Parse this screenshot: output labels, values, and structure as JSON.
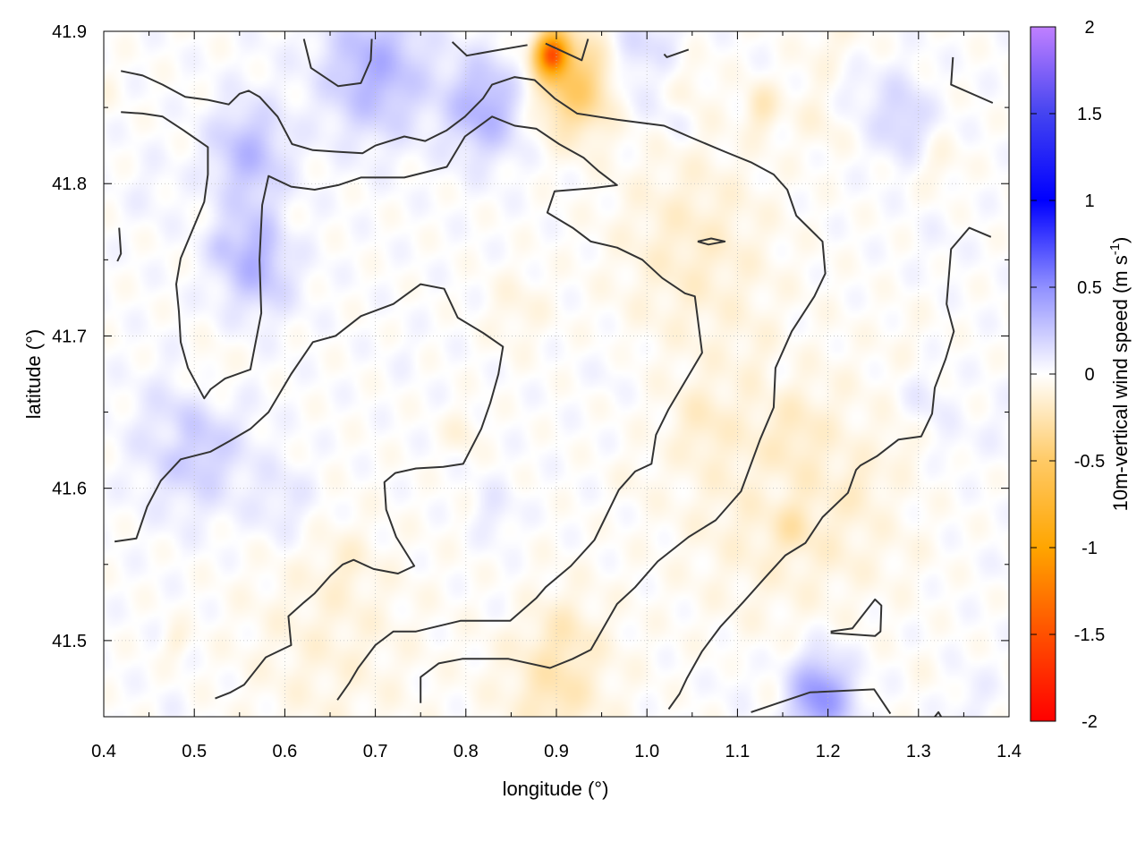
{
  "chart_data": {
    "type": "heatmap",
    "title": "",
    "xlabel": "longitude (°)",
    "ylabel": "latitude (°)",
    "xlim": [
      0.4,
      1.4
    ],
    "ylim": [
      41.45,
      41.9
    ],
    "xticks": [
      "0.4",
      "0.5",
      "0.6",
      "0.7",
      "0.8",
      "0.9",
      "1.0",
      "1.1",
      "1.2",
      "1.3",
      "1.4"
    ],
    "yticks": [
      "41.5",
      "41.6",
      "41.7",
      "41.8",
      "41.9"
    ],
    "grid": true,
    "colorbar": {
      "label_main": "10m-vertical wind speed (m s",
      "label_sup": "-1",
      "label_end": ")",
      "range": [
        -2,
        2
      ],
      "ticks": [
        "2",
        "1.5",
        "1",
        "0.5",
        "0",
        "-0.5",
        "-1",
        "-1.5",
        "-2"
      ],
      "stops": [
        {
          "v": -2,
          "color": "#ff0000"
        },
        {
          "v": -1.5,
          "color": "#ff5000"
        },
        {
          "v": -1,
          "color": "#ffa500"
        },
        {
          "v": -0.5,
          "color": "#ffca66"
        },
        {
          "v": 0,
          "color": "#ffffff"
        },
        {
          "v": 0.5,
          "color": "#9090ff"
        },
        {
          "v": 1,
          "color": "#0000ff"
        },
        {
          "v": 1.5,
          "color": "#4444f0"
        },
        {
          "v": 2,
          "color": "#c080ff"
        }
      ]
    },
    "field_features": [
      {
        "lon": 0.895,
        "lat": 41.885,
        "value": -1.3,
        "spread": 0.012
      },
      {
        "lon": 0.92,
        "lat": 41.865,
        "value": -0.5,
        "spread": 0.03
      },
      {
        "lon": 0.57,
        "lat": 41.75,
        "value": 0.35,
        "spread": 0.03
      },
      {
        "lon": 0.56,
        "lat": 41.82,
        "value": 0.3,
        "spread": 0.03
      },
      {
        "lon": 0.7,
        "lat": 41.875,
        "value": 0.35,
        "spread": 0.04
      },
      {
        "lon": 0.82,
        "lat": 41.85,
        "value": 0.35,
        "spread": 0.03
      },
      {
        "lon": 0.5,
        "lat": 41.63,
        "value": 0.25,
        "spread": 0.04
      },
      {
        "lon": 1.19,
        "lat": 41.463,
        "value": 0.5,
        "spread": 0.025
      },
      {
        "lon": 1.15,
        "lat": 41.6,
        "value": -0.15,
        "spread": 0.08
      },
      {
        "lon": 1.05,
        "lat": 41.76,
        "value": -0.15,
        "spread": 0.06
      },
      {
        "lon": 0.65,
        "lat": 41.5,
        "value": -0.1,
        "spread": 0.07
      },
      {
        "lon": 0.9,
        "lat": 41.48,
        "value": -0.15,
        "spread": 0.05
      },
      {
        "lon": 1.0,
        "lat": 41.88,
        "value": 0.2,
        "spread": 0.03
      }
    ],
    "contours": [
      [
        [
          0.419,
          41.874
        ],
        [
          0.443,
          41.871
        ],
        [
          0.465,
          41.865
        ],
        [
          0.49,
          41.857
        ],
        [
          0.515,
          41.855
        ],
        [
          0.538,
          41.852
        ],
        [
          0.55,
          41.859
        ],
        [
          0.56,
          41.861
        ],
        [
          0.572,
          41.857
        ],
        [
          0.592,
          41.844
        ],
        [
          0.608,
          41.826
        ],
        [
          0.631,
          41.822
        ],
        [
          0.656,
          41.821
        ],
        [
          0.686,
          41.82
        ],
        [
          0.7,
          41.825
        ],
        [
          0.732,
          41.831
        ],
        [
          0.755,
          41.828
        ],
        [
          0.779,
          41.835
        ],
        [
          0.799,
          41.844
        ],
        [
          0.819,
          41.856
        ],
        [
          0.829,
          41.865
        ],
        [
          0.854,
          41.87
        ],
        [
          0.876,
          41.868
        ],
        [
          0.898,
          41.856
        ],
        [
          0.923,
          41.846
        ],
        [
          0.967,
          41.842
        ],
        [
          1.019,
          41.838
        ],
        [
          1.046,
          41.831
        ],
        [
          1.086,
          41.821
        ],
        [
          1.115,
          41.814
        ],
        [
          1.14,
          41.806
        ],
        [
          1.155,
          41.796
        ],
        [
          1.165,
          41.779
        ],
        [
          1.194,
          41.762
        ],
        [
          1.197,
          41.741
        ],
        [
          1.185,
          41.726
        ],
        [
          1.16,
          41.703
        ],
        [
          1.142,
          41.679
        ],
        [
          1.14,
          41.653
        ],
        [
          1.125,
          41.632
        ],
        [
          1.104,
          41.598
        ],
        [
          1.076,
          41.579
        ],
        [
          1.046,
          41.568
        ],
        [
          1.012,
          41.552
        ],
        [
          0.987,
          41.535
        ],
        [
          0.967,
          41.524
        ],
        [
          0.938,
          41.494
        ],
        [
          0.918,
          41.488
        ],
        [
          0.893,
          41.482
        ],
        [
          0.847,
          41.488
        ],
        [
          0.796,
          41.488
        ],
        [
          0.77,
          41.485
        ],
        [
          0.75,
          41.476
        ],
        [
          0.75,
          41.459
        ]
      ],
      [
        [
          0.419,
          41.847
        ],
        [
          0.443,
          41.846
        ],
        [
          0.465,
          41.844
        ],
        [
          0.488,
          41.835
        ],
        [
          0.515,
          41.824
        ],
        [
          0.515,
          41.806
        ],
        [
          0.511,
          41.788
        ],
        [
          0.485,
          41.751
        ],
        [
          0.48,
          41.734
        ],
        [
          0.483,
          41.716
        ],
        [
          0.485,
          41.696
        ],
        [
          0.493,
          41.679
        ],
        [
          0.511,
          41.659
        ],
        [
          0.518,
          41.665
        ],
        [
          0.534,
          41.672
        ],
        [
          0.562,
          41.678
        ],
        [
          0.574,
          41.715
        ],
        [
          0.572,
          41.75
        ],
        [
          0.575,
          41.786
        ],
        [
          0.582,
          41.805
        ],
        [
          0.607,
          41.798
        ],
        [
          0.633,
          41.796
        ],
        [
          0.659,
          41.799
        ],
        [
          0.684,
          41.804
        ],
        [
          0.732,
          41.804
        ],
        [
          0.779,
          41.811
        ],
        [
          0.799,
          41.831
        ],
        [
          0.829,
          41.844
        ],
        [
          0.854,
          41.838
        ],
        [
          0.878,
          41.836
        ],
        [
          0.903,
          41.826
        ],
        [
          0.93,
          41.817
        ],
        [
          0.947,
          41.808
        ],
        [
          0.967,
          41.799
        ],
        [
          0.94,
          41.797
        ],
        [
          0.898,
          41.795
        ],
        [
          0.89,
          41.781
        ],
        [
          0.918,
          41.771
        ],
        [
          0.938,
          41.762
        ],
        [
          0.967,
          41.758
        ],
        [
          0.995,
          41.75
        ],
        [
          1.017,
          41.738
        ],
        [
          1.042,
          41.728
        ],
        [
          1.053,
          41.726
        ],
        [
          1.061,
          41.689
        ],
        [
          1.041,
          41.669
        ],
        [
          1.024,
          41.652
        ],
        [
          1.01,
          41.635
        ],
        [
          1.005,
          41.616
        ],
        [
          0.987,
          41.611
        ],
        [
          0.969,
          41.599
        ],
        [
          0.942,
          41.566
        ],
        [
          0.916,
          41.549
        ],
        [
          0.888,
          41.535
        ],
        [
          0.878,
          41.528
        ],
        [
          0.849,
          41.513
        ],
        [
          0.794,
          41.513
        ],
        [
          0.745,
          41.506
        ],
        [
          0.72,
          41.506
        ],
        [
          0.7,
          41.497
        ],
        [
          0.681,
          41.482
        ],
        [
          0.671,
          41.472
        ],
        [
          0.658,
          41.461
        ]
      ],
      [
        [
          0.412,
          41.565
        ],
        [
          0.436,
          41.567
        ],
        [
          0.448,
          41.588
        ],
        [
          0.463,
          41.605
        ],
        [
          0.485,
          41.619
        ],
        [
          0.518,
          41.624
        ],
        [
          0.539,
          41.631
        ],
        [
          0.562,
          41.639
        ],
        [
          0.582,
          41.65
        ],
        [
          0.607,
          41.675
        ],
        [
          0.631,
          41.696
        ],
        [
          0.656,
          41.7
        ],
        [
          0.684,
          41.713
        ],
        [
          0.72,
          41.721
        ],
        [
          0.75,
          41.734
        ],
        [
          0.776,
          41.731
        ],
        [
          0.791,
          41.712
        ],
        [
          0.819,
          41.702
        ],
        [
          0.841,
          41.693
        ],
        [
          0.836,
          41.675
        ],
        [
          0.827,
          41.656
        ],
        [
          0.817,
          41.639
        ],
        [
          0.797,
          41.616
        ],
        [
          0.775,
          41.614
        ],
        [
          0.745,
          41.613
        ],
        [
          0.722,
          41.61
        ],
        [
          0.71,
          41.604
        ],
        [
          0.712,
          41.586
        ],
        [
          0.723,
          41.568
        ],
        [
          0.743,
          41.549
        ],
        [
          0.725,
          41.544
        ],
        [
          0.698,
          41.547
        ],
        [
          0.676,
          41.553
        ],
        [
          0.664,
          41.55
        ],
        [
          0.651,
          41.543
        ],
        [
          0.633,
          41.531
        ],
        [
          0.621,
          41.525
        ],
        [
          0.604,
          41.516
        ],
        [
          0.607,
          41.497
        ],
        [
          0.6,
          41.495
        ],
        [
          0.579,
          41.489
        ],
        [
          0.555,
          41.471
        ],
        [
          0.54,
          41.466
        ],
        [
          0.523,
          41.462
        ]
      ],
      [
        [
          1.024,
          41.455
        ],
        [
          1.036,
          41.465
        ],
        [
          1.044,
          41.475
        ],
        [
          1.061,
          41.493
        ],
        [
          1.081,
          41.509
        ],
        [
          1.106,
          41.525
        ],
        [
          1.13,
          41.541
        ],
        [
          1.153,
          41.556
        ],
        [
          1.175,
          41.564
        ],
        [
          1.194,
          41.581
        ],
        [
          1.222,
          41.597
        ],
        [
          1.231,
          41.612
        ],
        [
          1.236,
          41.615
        ],
        [
          1.254,
          41.621
        ],
        [
          1.278,
          41.632
        ],
        [
          1.303,
          41.634
        ],
        [
          1.315,
          41.649
        ],
        [
          1.318,
          41.666
        ],
        [
          1.33,
          41.685
        ],
        [
          1.339,
          41.703
        ],
        [
          1.331,
          41.721
        ],
        [
          1.336,
          41.757
        ],
        [
          1.356,
          41.771
        ],
        [
          1.38,
          41.765
        ]
      ],
      [
        [
          1.338,
          41.883
        ],
        [
          1.336,
          41.865
        ],
        [
          1.382,
          41.853
        ]
      ],
      [
        [
          0.785,
          41.893
        ],
        [
          0.801,
          41.884
        ],
        [
          0.829,
          41.887
        ],
        [
          0.868,
          41.891
        ]
      ],
      [
        [
          0.621,
          41.895
        ],
        [
          0.629,
          41.876
        ],
        [
          0.659,
          41.864
        ],
        [
          0.684,
          41.866
        ],
        [
          0.695,
          41.881
        ],
        [
          0.696,
          41.895
        ]
      ],
      [
        [
          0.888,
          41.892
        ],
        [
          0.928,
          41.881
        ],
        [
          0.935,
          41.895
        ]
      ],
      [
        [
          1.019,
          41.885
        ],
        [
          1.022,
          41.883
        ],
        [
          1.046,
          41.888
        ]
      ],
      [
        [
          0.417,
          41.771
        ],
        [
          0.419,
          41.754
        ],
        [
          0.415,
          41.749
        ]
      ],
      [
        [
          1.056,
          41.762
        ],
        [
          1.071,
          41.764
        ],
        [
          1.086,
          41.762
        ],
        [
          1.068,
          41.76
        ],
        [
          1.056,
          41.762
        ]
      ],
      [
        [
          1.203,
          41.506
        ],
        [
          1.227,
          41.508
        ],
        [
          1.252,
          41.527
        ],
        [
          1.259,
          41.523
        ],
        [
          1.258,
          41.506
        ],
        [
          1.252,
          41.503
        ],
        [
          1.203,
          41.505
        ]
      ],
      [
        [
          1.115,
          41.453
        ],
        [
          1.145,
          41.459
        ],
        [
          1.18,
          41.466
        ],
        [
          1.251,
          41.468
        ],
        [
          1.269,
          41.452
        ]
      ],
      [
        [
          1.318,
          41.45
        ],
        [
          1.322,
          41.453
        ],
        [
          1.325,
          41.45
        ]
      ]
    ],
    "contour_color": "#333333"
  }
}
